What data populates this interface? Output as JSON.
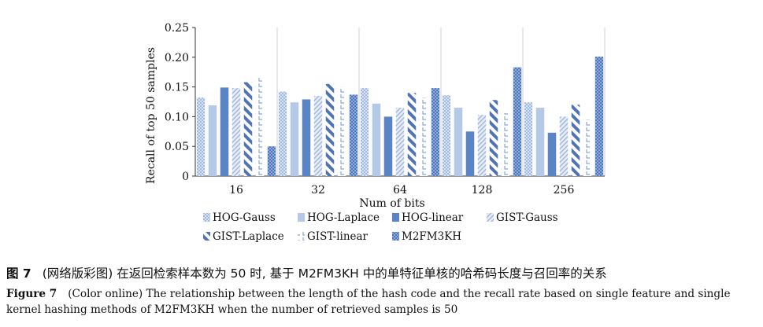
{
  "chart_data": {
    "type": "bar",
    "ylabel": "Recall of top 50 samples",
    "xlabel": "Num of bits",
    "ylim": [
      0,
      0.25
    ],
    "yticks": [
      "0",
      "0.05",
      "0.10",
      "0.15",
      "0.20",
      "0.25"
    ],
    "ytick_values": [
      0,
      0.05,
      0.1,
      0.15,
      0.2,
      0.25
    ],
    "grid": "horizontal",
    "legend_position": "bottom",
    "categories": [
      "16",
      "32",
      "64",
      "128",
      "256"
    ],
    "series": [
      {
        "name": "HOG-Gauss",
        "values": [
          0.132,
          0.142,
          0.148,
          0.136,
          0.124
        ],
        "color": "#b8c9e6",
        "pattern": "dots"
      },
      {
        "name": "HOG-Laplace",
        "values": [
          0.119,
          0.124,
          0.122,
          0.115,
          0.115
        ],
        "color": "#aac2e2",
        "pattern": "solid"
      },
      {
        "name": "HOG-linear",
        "values": [
          0.149,
          0.129,
          0.1,
          0.075,
          0.073
        ],
        "color": "#5b84c4",
        "pattern": "solid"
      },
      {
        "name": "GIST-Gauss",
        "values": [
          0.148,
          0.135,
          0.115,
          0.103,
          0.1
        ],
        "color": "#c8d6ea",
        "pattern": "diagonal"
      },
      {
        "name": "GIST-Laplace",
        "values": [
          0.158,
          0.155,
          0.14,
          0.128,
          0.12
        ],
        "color": "#5679b8",
        "pattern": "wide-diagonal"
      },
      {
        "name": "GIST-linear",
        "values": [
          0.168,
          0.15,
          0.132,
          0.106,
          0.095
        ],
        "color": "#9fb8de",
        "pattern": "brackets"
      },
      {
        "name": "M2FM3KH",
        "values": [
          0.05,
          0.137,
          0.148,
          0.183,
          0.201
        ],
        "color": "#6f95cf",
        "pattern": "checker"
      }
    ]
  },
  "caption": {
    "cn_label": "图 7",
    "cn_text": "(网络版彩图) 在返回检索样本数为 50 时, 基于 M2FM3KH 中的单特征单核的哈希码长度与召回率的关系",
    "en_label": "Figure 7",
    "en_text": "(Color online) The relationship between the length of the hash code and the recall rate based on single feature and single kernel hashing methods of M2FM3KH when the number of retrieved samples is 50"
  }
}
